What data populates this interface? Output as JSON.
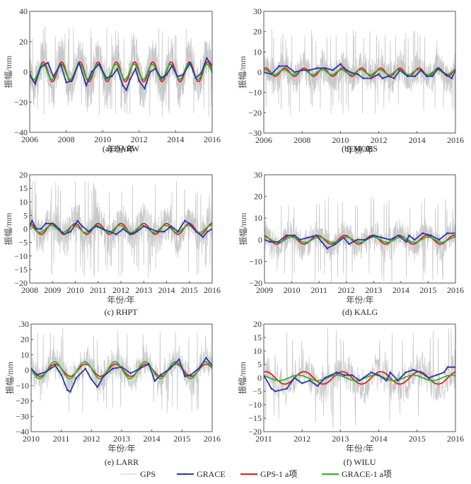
{
  "legend": {
    "entries": [
      {
        "label": "GPS",
        "color": "#c8c8c8"
      },
      {
        "label": "GRACE",
        "color": "#2b3aa0"
      },
      {
        "label": "GPS-1 a项",
        "color": "#e02020"
      },
      {
        "label": "GRACE-1 a项",
        "color": "#2db32d"
      }
    ]
  },
  "chart_data": [
    {
      "type": "line",
      "id": "a",
      "caption": "(a) DARW",
      "xlabel": "年份/年",
      "ylabel": "振幅/mm",
      "xlim": [
        2006,
        2016
      ],
      "ylim": [
        -40,
        40
      ],
      "xticks": [
        2006,
        2008,
        2010,
        2012,
        2014,
        2016
      ],
      "yticks": [
        -40,
        -20,
        0,
        20,
        40
      ],
      "ytick_labels": [
        "-40",
        "-20",
        "0",
        "20",
        "40"
      ],
      "series": [
        {
          "name": "GPS",
          "noise_amplitude": 12,
          "peak": 30
        },
        {
          "name": "GRACE",
          "x": [
            2006.0,
            2006.3,
            2006.6,
            2007.0,
            2007.3,
            2007.7,
            2008.0,
            2008.3,
            2008.7,
            2009.1,
            2009.4,
            2009.8,
            2010.2,
            2010.5,
            2010.8,
            2011.1,
            2011.3,
            2011.5,
            2011.8,
            2012.0,
            2012.3,
            2012.6,
            2012.9,
            2013.2,
            2013.5,
            2013.8,
            2014.1,
            2014.4,
            2014.8,
            2015.1,
            2015.4,
            2015.7,
            2016.0
          ],
          "values": [
            -2,
            -8,
            3,
            6,
            -3,
            5,
            -7,
            -6,
            6,
            -9,
            0,
            5,
            -4,
            -3,
            2,
            -9,
            -12,
            -5,
            2,
            -6,
            -11,
            0,
            2,
            -4,
            -2,
            4,
            -3,
            -2,
            6,
            -4,
            -1,
            9,
            4
          ]
        },
        {
          "name": "GPS-1 a项",
          "amplitude": 6.5,
          "phase_peak": 0.75,
          "offset": 0
        },
        {
          "name": "GRACE-1 a项",
          "amplitude": 5,
          "phase_peak": 0.72,
          "offset": 0
        }
      ]
    },
    {
      "type": "line",
      "id": "b",
      "caption": "(b) MOBS",
      "xlabel": "年份/年",
      "ylabel": "振幅/mm",
      "xlim": [
        2006,
        2016
      ],
      "ylim": [
        -30,
        30
      ],
      "xticks": [
        2006,
        2008,
        2010,
        2012,
        2014,
        2016
      ],
      "yticks": [
        -30,
        -20,
        -10,
        0,
        10,
        20,
        30
      ],
      "ytick_labels": [
        "-30",
        "-20",
        "-10",
        "0",
        "10",
        "20",
        "30"
      ],
      "series": [
        {
          "name": "GPS",
          "noise_amplitude": 7,
          "peak": 21
        },
        {
          "name": "GRACE",
          "x": [
            2006.0,
            2006.4,
            2006.8,
            2007.2,
            2007.6,
            2008.0,
            2008.4,
            2008.8,
            2009.2,
            2009.6,
            2010.0,
            2010.2,
            2010.5,
            2010.9,
            2011.2,
            2011.6,
            2012.0,
            2012.2,
            2012.5,
            2012.8,
            2013.1,
            2013.5,
            2013.9,
            2014.2,
            2014.5,
            2014.8,
            2015.1,
            2015.5,
            2015.8,
            2016.0
          ],
          "values": [
            0,
            -1,
            3,
            3,
            0,
            1,
            1,
            2,
            2,
            1,
            4,
            2,
            0,
            -1,
            -3,
            -3,
            -1,
            -3,
            -2,
            -3,
            1,
            -2,
            -2,
            1,
            -2,
            -2,
            2,
            -1,
            -3,
            1
          ]
        },
        {
          "name": "GPS-1 a项",
          "amplitude": 2,
          "phase_peak": 0.1,
          "offset": 0
        },
        {
          "name": "GRACE-1 a项",
          "amplitude": 1.2,
          "phase_peak": 0.05,
          "offset": 0
        }
      ]
    },
    {
      "type": "line",
      "id": "c",
      "caption": "(c) RHPT",
      "xlabel": "年份/年",
      "ylabel": "振幅/mm",
      "xlim": [
        2008,
        2016
      ],
      "ylim": [
        -20,
        20
      ],
      "xticks": [
        2008,
        2009,
        2010,
        2011,
        2012,
        2013,
        2014,
        2015,
        2016
      ],
      "yticks": [
        -20,
        -15,
        -10,
        -5,
        0,
        5,
        10,
        15,
        20
      ],
      "ytick_labels": [
        "-20",
        "-15",
        "-10",
        "-5",
        "0",
        "5",
        "10",
        "15",
        "20"
      ],
      "series": [
        {
          "name": "GPS",
          "noise_amplitude": 6,
          "peak": 18
        },
        {
          "name": "GRACE",
          "x": [
            2008.0,
            2008.1,
            2008.3,
            2008.5,
            2008.7,
            2009.0,
            2009.3,
            2009.5,
            2009.8,
            2010.1,
            2010.3,
            2010.6,
            2010.9,
            2011.2,
            2011.5,
            2011.8,
            2012.1,
            2012.4,
            2012.7,
            2013.0,
            2013.3,
            2013.6,
            2013.9,
            2014.2,
            2014.5,
            2014.8,
            2015.0,
            2015.3,
            2015.6,
            2015.8,
            2016.0
          ],
          "values": [
            1,
            3,
            0,
            0,
            2,
            2,
            0,
            -2,
            -1,
            3,
            1,
            -1,
            1,
            0,
            -1,
            -2,
            0,
            -2,
            -1,
            1,
            0,
            -1,
            -1,
            1,
            -1,
            3,
            2,
            -1,
            -3,
            -1,
            0
          ]
        },
        {
          "name": "GPS-1 a项",
          "amplitude": 2,
          "phase_peak": 0.0,
          "offset": 0
        },
        {
          "name": "GRACE-1 a项",
          "amplitude": 1.3,
          "phase_peak": 0.95,
          "offset": 0
        }
      ]
    },
    {
      "type": "line",
      "id": "d",
      "caption": "(d) KALG",
      "xlabel": "年份/年",
      "ylabel": "振幅/mm",
      "xlim": [
        2009,
        2016
      ],
      "ylim": [
        -20,
        30
      ],
      "xticks": [
        2009,
        2010,
        2011,
        2012,
        2013,
        2014,
        2015,
        2016
      ],
      "yticks": [
        -20,
        -10,
        0,
        10,
        20,
        30
      ],
      "ytick_labels": [
        "-20",
        "-10",
        "0",
        "10",
        "20",
        "30"
      ],
      "series": [
        {
          "name": "GPS",
          "noise_amplitude": 6,
          "peak": 20
        },
        {
          "name": "GRACE",
          "x": [
            2009.0,
            2009.2,
            2009.5,
            2009.8,
            2010.1,
            2010.3,
            2010.6,
            2010.9,
            2011.1,
            2011.3,
            2011.6,
            2011.9,
            2012.1,
            2012.4,
            2012.7,
            2013.0,
            2013.3,
            2013.6,
            2013.9,
            2014.2,
            2014.3,
            2014.5,
            2014.8,
            2015.1,
            2015.4,
            2015.7,
            2016.0
          ],
          "values": [
            0,
            -1,
            -1,
            2,
            2,
            0,
            1,
            2,
            -1,
            -4,
            -2,
            1,
            -2,
            0,
            0,
            2,
            1,
            0,
            2,
            -1,
            2,
            0,
            3,
            2,
            0,
            3,
            3
          ]
        },
        {
          "name": "GPS-1 a项",
          "amplitude": 2,
          "phase_peak": 0.95,
          "offset": 0
        },
        {
          "name": "GRACE-1 a项",
          "amplitude": 1.2,
          "phase_peak": 0.0,
          "offset": 0
        }
      ]
    },
    {
      "type": "line",
      "id": "e",
      "caption": "(e) LARR",
      "xlabel": "年份/年",
      "ylabel": "振幅/mm",
      "xlim": [
        2010,
        2016
      ],
      "ylim": [
        -40,
        30
      ],
      "xticks": [
        2010,
        2011,
        2012,
        2013,
        2014,
        2015,
        2016
      ],
      "yticks": [
        -40,
        -30,
        -20,
        -10,
        0,
        10,
        20,
        30
      ],
      "ytick_labels": [
        "-40",
        "-30",
        "-20",
        "-10",
        "0",
        "10",
        "20",
        ".30"
      ],
      "series": [
        {
          "name": "GPS",
          "noise_amplitude": 9,
          "peak": 28
        },
        {
          "name": "GRACE",
          "x": [
            2010.0,
            2010.2,
            2010.5,
            2010.8,
            2011.0,
            2011.2,
            2011.3,
            2011.5,
            2011.8,
            2012.0,
            2012.2,
            2012.4,
            2012.7,
            2013.0,
            2013.3,
            2013.6,
            2013.9,
            2014.1,
            2014.3,
            2014.6,
            2014.9,
            2015.1,
            2015.3,
            2015.6,
            2015.8,
            2016.0
          ],
          "values": [
            1,
            -3,
            -1,
            3,
            -3,
            -13,
            -14,
            -5,
            1,
            -6,
            -11,
            -4,
            1,
            2,
            -2,
            1,
            4,
            -7,
            -3,
            1,
            7,
            -4,
            -3,
            2,
            8,
            3
          ]
        },
        {
          "name": "GPS-1 a项",
          "amplitude": 4,
          "phase_peak": 0.8,
          "offset": 0
        },
        {
          "name": "GRACE-1 a项",
          "amplitude": 5.5,
          "phase_peak": 0.78,
          "offset": 0
        }
      ]
    },
    {
      "type": "line",
      "id": "f",
      "caption": "(f) WILU",
      "xlabel": "年份/年",
      "ylabel": "振幅/mm",
      "xlim": [
        2011,
        2016
      ],
      "ylim": [
        -20,
        20
      ],
      "xticks": [
        2011,
        2012,
        2013,
        2014,
        2015,
        2016
      ],
      "yticks": [
        -20,
        -15,
        -10,
        -5,
        0,
        5,
        10,
        15,
        20
      ],
      "ytick_labels": [
        "-20",
        "-15",
        "-10",
        "-5",
        "0",
        "5",
        "10",
        "15",
        "20"
      ],
      "series": [
        {
          "name": "GPS",
          "noise_amplitude": 6,
          "peak": 19
        },
        {
          "name": "GRACE",
          "x": [
            2011.0,
            2011.2,
            2011.3,
            2011.6,
            2011.8,
            2012.0,
            2012.2,
            2012.4,
            2012.6,
            2012.9,
            2013.1,
            2013.3,
            2013.5,
            2013.8,
            2014.0,
            2014.2,
            2014.3,
            2014.5,
            2014.7,
            2014.9,
            2015.1,
            2015.3,
            2015.5,
            2015.7,
            2015.8,
            2016.0
          ],
          "values": [
            1,
            -4,
            -5,
            -4,
            0,
            -2,
            -1,
            -3,
            0,
            2,
            1,
            1,
            -1,
            2,
            1,
            -1,
            2,
            -1,
            2,
            3,
            2,
            0,
            1,
            2,
            4,
            4
          ]
        },
        {
          "name": "GPS-1 a项",
          "amplitude": 2.3,
          "phase_peak": 0.05,
          "offset": 0
        },
        {
          "name": "GRACE-1 a项",
          "amplitude": 1.0,
          "phase_peak": 0.9,
          "offset": 0
        }
      ]
    }
  ]
}
